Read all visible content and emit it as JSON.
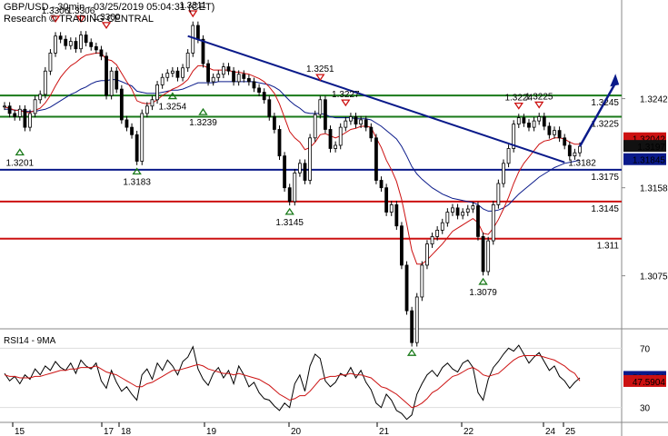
{
  "header": {
    "title": "GBP/USD - 30min - 03/25/2019 05:04:31 (CET)",
    "subtitle": "Research © TRADING CENTRAL"
  },
  "chart_data": [
    {
      "type": "line",
      "pane": "price",
      "ylim": [
        1.3025,
        1.3335
      ],
      "y_ticks": [
        "1.3242",
        "1.3158",
        "1.3075"
      ],
      "x_ticks": [
        "15",
        "17",
        "18",
        "19",
        "20",
        "21",
        "22",
        "24",
        "25"
      ],
      "series": [
        {
          "values": [
            1.3235,
            1.3228,
            1.3225,
            1.3232,
            1.3215,
            1.3228,
            1.3241,
            1.3246,
            1.3268,
            1.3285,
            1.3301,
            1.3298,
            1.3292,
            1.3296,
            1.3289,
            1.3302,
            1.3295,
            1.3291,
            1.3288,
            1.3282,
            1.3245,
            1.3268,
            1.3251,
            1.3222,
            1.3215,
            1.3208,
            1.3183,
            1.3228,
            1.3235,
            1.3241,
            1.3255,
            1.3262,
            1.3266,
            1.3268,
            1.3262,
            1.3271,
            1.3285,
            1.3311,
            1.3298,
            1.3275,
            1.3258,
            1.3262,
            1.3265,
            1.3272,
            1.3268,
            1.3258,
            1.3265,
            1.3261,
            1.3258,
            1.3252,
            1.3248,
            1.3241,
            1.3225,
            1.3213,
            1.3188,
            1.3158,
            1.3145,
            1.3172,
            1.3181,
            1.3165,
            1.3205,
            1.3227,
            1.3241,
            1.3213,
            1.3195,
            1.3198,
            1.3215,
            1.3221,
            1.3225,
            1.3218,
            1.3222,
            1.3215,
            1.3205,
            1.3165,
            1.3158,
            1.3135,
            1.3142,
            1.3122,
            1.3085,
            1.3042,
            1.3012,
            1.3055,
            1.3085,
            1.3105,
            1.3112,
            1.3118,
            1.3125,
            1.3135,
            1.3139,
            1.3132,
            1.3135,
            1.3138,
            1.3141,
            1.3112,
            1.3079,
            1.3108,
            1.3142,
            1.3162,
            1.3181,
            1.3195,
            1.3218,
            1.3224,
            1.3219,
            1.3215,
            1.3221,
            1.3225,
            1.3216,
            1.3208,
            1.3212,
            1.3205,
            1.3198,
            1.3188,
            1.3191,
            1.3197
          ]
        },
        {
          "values": [
            1.3234,
            1.3233,
            1.3231,
            1.3231,
            1.3229,
            1.3229,
            1.3231,
            1.3233,
            1.3238,
            1.3245,
            1.3254,
            1.3262,
            1.3268,
            1.3273,
            1.3276,
            1.328,
            1.3283,
            1.3284,
            1.3285,
            1.3285,
            1.3279,
            1.3278,
            1.3274,
            1.3266,
            1.3258,
            1.3251,
            1.324,
            1.3238,
            1.3237,
            1.3238,
            1.3241,
            1.3245,
            1.3248,
            1.3251,
            1.3253,
            1.3256,
            1.326,
            1.3268,
            1.3273,
            1.3273,
            1.3271,
            1.3269,
            1.3269,
            1.3269,
            1.3269,
            1.3267,
            1.3267,
            1.3266,
            1.3265,
            1.3263,
            1.3261,
            1.3258,
            1.3253,
            1.3247,
            1.3237,
            1.3224,
            1.3211,
            1.3205,
            1.3201,
            1.3194,
            1.3196,
            1.3201,
            1.3208,
            1.3209,
            1.3207,
            1.3205,
            1.3207,
            1.321,
            1.3213,
            1.3214,
            1.3216,
            1.3216,
            1.3215,
            1.3205,
            1.3196,
            1.3184,
            1.3175,
            1.3164,
            1.3147,
            1.3124,
            1.3099,
            1.3086,
            1.3086,
            1.309,
            1.3095,
            1.31,
            1.3105,
            1.3111,
            1.3117,
            1.312,
            1.3123,
            1.3126,
            1.3129,
            1.3125,
            1.3115,
            1.3114,
            1.312,
            1.3128,
            1.3138,
            1.3149,
            1.3162,
            1.3173,
            1.3181,
            1.3187,
            1.3193,
            1.3199,
            1.3202,
            1.3203,
            1.3205,
            1.3205,
            1.3204,
            1.3201,
            1.3199,
            1.3199
          ]
        },
        {
          "values": [
            1.3232,
            1.3232,
            1.3231,
            1.3231,
            1.323,
            1.323,
            1.323,
            1.3231,
            1.3232,
            1.3234,
            1.3237,
            1.324,
            1.3243,
            1.3246,
            1.3248,
            1.3251,
            1.3253,
            1.3256,
            1.3258,
            1.3259,
            1.3259,
            1.326,
            1.326,
            1.3258,
            1.3256,
            1.3254,
            1.3249,
            1.3248,
            1.3247,
            1.3247,
            1.3247,
            1.3248,
            1.3249,
            1.325,
            1.325,
            1.3251,
            1.3253,
            1.3255,
            1.3257,
            1.3257,
            1.3257,
            1.3257,
            1.3258,
            1.3258,
            1.3258,
            1.3258,
            1.3258,
            1.3258,
            1.3258,
            1.3258,
            1.3257,
            1.3256,
            1.3255,
            1.3253,
            1.325,
            1.3245,
            1.324,
            1.3236,
            1.3233,
            1.3229,
            1.3228,
            1.3228,
            1.3228,
            1.3227,
            1.3225,
            1.3224,
            1.3224,
            1.3224,
            1.3224,
            1.3223,
            1.3223,
            1.3223,
            1.3222,
            1.3219,
            1.3216,
            1.3212,
            1.3208,
            1.3204,
            1.3197,
            1.3188,
            1.3178,
            1.3171,
            1.3166,
            1.3162,
            1.3158,
            1.3155,
            1.3152,
            1.315,
            1.3148,
            1.3147,
            1.3146,
            1.3145,
            1.3144,
            1.3142,
            1.3138,
            1.3136,
            1.3136,
            1.3137,
            1.3139,
            1.3142,
            1.3147,
            1.3152,
            1.3156,
            1.316,
            1.3164,
            1.3168,
            1.3171,
            1.3174,
            1.3177,
            1.3179,
            1.3181,
            1.3182,
            1.3183,
            1.3184
          ]
        }
      ],
      "levels": [
        {
          "value": 1.3245,
          "label": "1.3245",
          "color": "#1a7a1a"
        },
        {
          "value": 1.3225,
          "label": "1.3225",
          "color": "#1a7a1a"
        },
        {
          "value": 1.3175,
          "label": "1.3175",
          "color": "#0a1a8a"
        },
        {
          "value": 1.3145,
          "label": "1.3145",
          "color": "#cc1111"
        },
        {
          "value": 1.311,
          "label": "1.311",
          "color": "#cc1111"
        }
      ],
      "price_tags": [
        {
          "value": 1.32042,
          "label": "1.32042",
          "bg": "#cc1111",
          "fg": "#000000"
        },
        {
          "value": 1.3197,
          "label": "1.3197",
          "bg": "#111111",
          "fg": "#ffffff"
        },
        {
          "value": 1.31845,
          "label": "1.31845",
          "bg": "#0a1a8a",
          "fg": "#ffffff"
        }
      ],
      "trendline": {
        "from": [
          36,
          1.3301
        ],
        "to": [
          110,
          1.3182
        ],
        "label": "1.3182"
      },
      "annotations": [
        {
          "i": 3,
          "value": 1.3201,
          "label": "1.3201",
          "kind": "low"
        },
        {
          "i": 10,
          "value": 1.3306,
          "label": "1.3306",
          "kind": "high"
        },
        {
          "i": 15,
          "value": 1.3306,
          "label": "1.3306",
          "kind": "high"
        },
        {
          "i": 20,
          "value": 1.33,
          "label": "1.3300",
          "kind": "high"
        },
        {
          "i": 26,
          "value": 1.3183,
          "label": "1.3183",
          "kind": "low"
        },
        {
          "i": 33,
          "value": 1.3254,
          "label": "1.3254",
          "kind": "low"
        },
        {
          "i": 37,
          "value": 1.3311,
          "label": "1.3311",
          "kind": "high"
        },
        {
          "i": 39,
          "value": 1.3239,
          "label": "1.3239",
          "kind": "low"
        },
        {
          "i": 56,
          "value": 1.3145,
          "label": "1.3145",
          "kind": "low"
        },
        {
          "i": 62,
          "value": 1.3251,
          "label": "1.3251",
          "kind": "high"
        },
        {
          "i": 67,
          "value": 1.3227,
          "label": "1.3227",
          "kind": "high"
        },
        {
          "i": 80,
          "value": 1.3012,
          "label": "",
          "kind": "low"
        },
        {
          "i": 94,
          "value": 1.3079,
          "label": "1.3079",
          "kind": "low"
        },
        {
          "i": 101,
          "value": 1.3224,
          "label": "1.3224",
          "kind": "high"
        },
        {
          "i": 105,
          "value": 1.3225,
          "label": "1.3225",
          "kind": "high"
        }
      ],
      "forecast_arrow": {
        "from": [
          113,
          1.3197
        ],
        "to": [
          120,
          1.3262
        ]
      },
      "colors": {
        "price": "#000000",
        "ma_fast": "#cc1111",
        "ma_slow": "#0a1a8a",
        "support": "#1a7a1a",
        "resistance": "#cc1111",
        "pivot": "#0a1a8a"
      }
    },
    {
      "type": "line",
      "pane": "indicator",
      "title": "RSI14 - 9MA",
      "ylim": [
        20,
        80
      ],
      "y_ticks": [
        "70",
        "30"
      ],
      "series": [
        {
          "values": [
            53,
            48,
            51,
            46,
            52,
            49,
            56,
            52,
            58,
            55,
            61,
            57,
            55,
            60,
            53,
            62,
            58,
            56,
            60,
            48,
            43,
            55,
            47,
            41,
            44,
            39,
            35,
            52,
            56,
            49,
            60,
            55,
            62,
            58,
            52,
            61,
            64,
            71,
            56,
            49,
            45,
            53,
            57,
            50,
            55,
            46,
            58,
            52,
            44,
            47,
            40,
            36,
            35,
            31,
            28,
            33,
            30,
            46,
            52,
            41,
            58,
            66,
            63,
            48,
            44,
            47,
            53,
            51,
            57,
            50,
            55,
            47,
            42,
            33,
            30,
            39,
            35,
            28,
            26,
            22,
            25,
            39,
            46,
            52,
            55,
            51,
            57,
            60,
            56,
            54,
            60,
            62,
            57,
            40,
            35,
            49,
            57,
            61,
            66,
            70,
            68,
            72,
            66,
            60,
            64,
            67,
            61,
            55,
            58,
            51,
            48,
            43,
            47,
            50
          ]
        },
        {
          "values": [
            52,
            51,
            51,
            50,
            50,
            50,
            51,
            51,
            52,
            53,
            54,
            55,
            55,
            56,
            56,
            57,
            57,
            57,
            58,
            56,
            54,
            53,
            52,
            50,
            48,
            46,
            44,
            44,
            46,
            47,
            49,
            51,
            53,
            55,
            55,
            56,
            57,
            58,
            59,
            58,
            56,
            55,
            54,
            53,
            53,
            52,
            53,
            52,
            51,
            50,
            49,
            47,
            45,
            42,
            39,
            37,
            35,
            36,
            38,
            38,
            41,
            45,
            49,
            50,
            51,
            51,
            52,
            52,
            53,
            52,
            52,
            51,
            50,
            47,
            44,
            43,
            41,
            39,
            36,
            33,
            30,
            31,
            33,
            36,
            40,
            42,
            45,
            48,
            51,
            52,
            54,
            56,
            57,
            55,
            52,
            51,
            52,
            53,
            56,
            59,
            62,
            64,
            65,
            65,
            65,
            65,
            64,
            63,
            62,
            60,
            58,
            55,
            53,
            48
          ]
        }
      ],
      "value_tags": [
        {
          "value": 50.3459,
          "label": "50.3459",
          "bg": "#0a1a8a",
          "fg": "#ffffff"
        },
        {
          "value": 47.5904,
          "label": "47.5904",
          "bg": "#cc1111",
          "fg": "#ffffff"
        }
      ],
      "colors": {
        "rsi": "#000000",
        "ma": "#cc1111"
      }
    }
  ]
}
